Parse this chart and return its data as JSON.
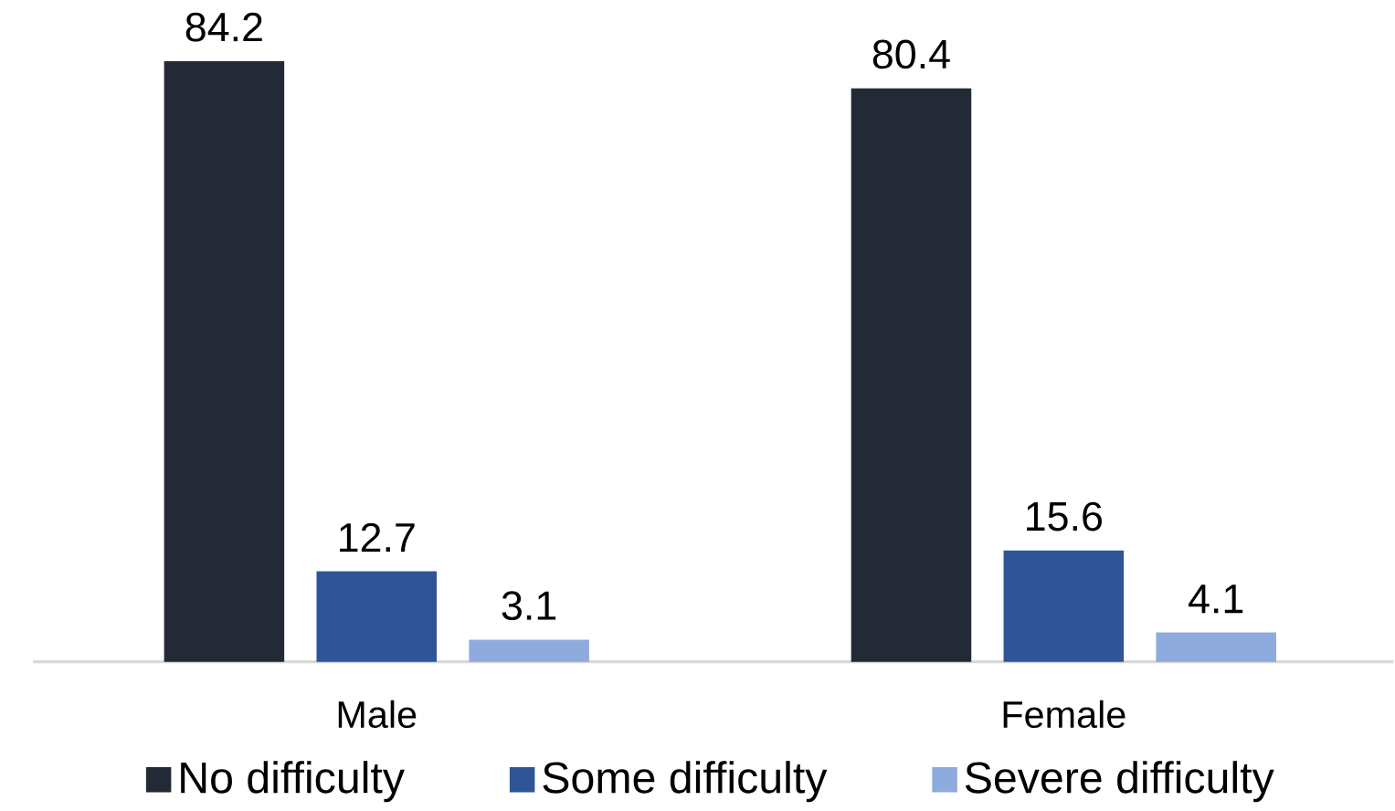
{
  "chart_data": {
    "type": "bar",
    "categories": [
      "Male",
      "Female"
    ],
    "series": [
      {
        "name": "No difficulty",
        "color": "#242a35",
        "values": [
          84.2,
          80.4
        ]
      },
      {
        "name": "Some difficulty",
        "color": "#2f5597",
        "values": [
          12.7,
          15.6
        ]
      },
      {
        "name": "Severe difficulty",
        "color": "#8faadc",
        "values": [
          3.1,
          4.1
        ]
      }
    ],
    "data_labels": true,
    "legend": "bottom"
  }
}
